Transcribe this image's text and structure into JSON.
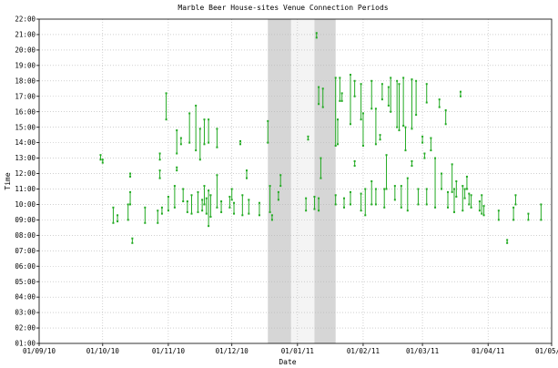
{
  "chart_data": {
    "type": "scatter",
    "title": "Marble Beer House-sites Venue Connection Periods",
    "xlabel": "Date",
    "ylabel": "Time",
    "xlim": [
      "2010-09-01",
      "2011-05-01"
    ],
    "ylim": [
      1,
      22
    ],
    "x_ticks": [
      "01/09/10",
      "01/10/10",
      "01/11/10",
      "01/12/10",
      "01/01/11",
      "01/02/11",
      "01/03/11",
      "01/04/11",
      "01/05/11"
    ],
    "y_ticks": [
      "01:00",
      "02:00",
      "03:00",
      "04:00",
      "05:00",
      "06:00",
      "07:00",
      "08:00",
      "09:00",
      "10:00",
      "11:00",
      "12:00",
      "13:00",
      "14:00",
      "15:00",
      "16:00",
      "17:00",
      "18:00",
      "19:00",
      "20:00",
      "21:00",
      "22:00"
    ],
    "grid": true,
    "legend": "none",
    "colors": {
      "series": "#22aa22",
      "shade_dark": "#d6d6d6",
      "shade_light": "#f4f4f4",
      "grid": "#b4b4b4"
    },
    "shaded_periods": [
      {
        "start": "2010-12-18",
        "end": "2010-12-29",
        "tone": "dark"
      },
      {
        "start": "2010-12-29",
        "end": "2011-01-09",
        "tone": "light"
      },
      {
        "start": "2011-01-09",
        "end": "2011-01-19",
        "tone": "dark"
      }
    ],
    "series": [
      {
        "color": "#22aa22",
        "intervals": [
          [
            "2010-09-30",
            12.9,
            13.2
          ],
          [
            "2010-10-01",
            12.7,
            12.9
          ],
          [
            "2010-10-06",
            8.8,
            9.8
          ],
          [
            "2010-10-08",
            8.9,
            9.3
          ],
          [
            "2010-10-13",
            9.0,
            10.0
          ],
          [
            "2010-10-14",
            10.0,
            10.8
          ],
          [
            "2010-10-14",
            11.8,
            12.0
          ],
          [
            "2010-10-15",
            7.5,
            7.8
          ],
          [
            "2010-10-21",
            8.8,
            9.8
          ],
          [
            "2010-10-27",
            8.8,
            9.6
          ],
          [
            "2010-10-28",
            11.7,
            12.2
          ],
          [
            "2010-10-28",
            12.9,
            13.3
          ],
          [
            "2010-10-29",
            9.4,
            9.8
          ],
          [
            "2010-10-31",
            15.5,
            17.2
          ],
          [
            "2010-11-01",
            9.6,
            10.5
          ],
          [
            "2010-11-04",
            9.8,
            11.2
          ],
          [
            "2010-11-05",
            13.3,
            14.8
          ],
          [
            "2010-11-05",
            12.2,
            12.4
          ],
          [
            "2010-11-07",
            13.9,
            14.3
          ],
          [
            "2010-11-08",
            10.2,
            11.0
          ],
          [
            "2010-11-10",
            9.5,
            10.2
          ],
          [
            "2010-11-11",
            14.0,
            15.9
          ],
          [
            "2010-11-12",
            9.4,
            10.6
          ],
          [
            "2010-11-14",
            13.5,
            16.4
          ],
          [
            "2010-11-15",
            9.5,
            10.8
          ],
          [
            "2010-11-16",
            12.9,
            14.9
          ],
          [
            "2010-11-17",
            9.6,
            10.3
          ],
          [
            "2010-11-18",
            10.0,
            11.2
          ],
          [
            "2010-11-18",
            13.9,
            15.5
          ],
          [
            "2010-11-19",
            9.4,
            10.4
          ],
          [
            "2010-11-20",
            8.6,
            10.9
          ],
          [
            "2010-11-20",
            14.0,
            15.5
          ],
          [
            "2010-11-21",
            9.2,
            10.6
          ],
          [
            "2010-11-24",
            9.8,
            11.9
          ],
          [
            "2010-11-24",
            13.7,
            14.9
          ],
          [
            "2010-11-26",
            9.5,
            10.2
          ],
          [
            "2010-11-30",
            9.8,
            10.5
          ],
          [
            "2010-12-01",
            10.3,
            11.0
          ],
          [
            "2010-12-02",
            9.4,
            10.1
          ],
          [
            "2010-12-05",
            13.9,
            14.1
          ],
          [
            "2010-12-06",
            9.3,
            10.6
          ],
          [
            "2010-12-08",
            11.7,
            12.2
          ],
          [
            "2010-12-09",
            9.4,
            10.3
          ],
          [
            "2010-12-14",
            9.3,
            10.1
          ],
          [
            "2010-12-18",
            14.0,
            15.4
          ],
          [
            "2010-12-19",
            9.5,
            11.2
          ],
          [
            "2010-12-20",
            9.0,
            9.3
          ],
          [
            "2010-12-23",
            10.3,
            10.8
          ],
          [
            "2010-12-24",
            11.2,
            11.9
          ],
          [
            "2011-01-05",
            9.6,
            10.4
          ],
          [
            "2011-01-06",
            14.2,
            14.4
          ],
          [
            "2011-01-09",
            9.7,
            10.5
          ],
          [
            "2011-01-10",
            20.8,
            21.1
          ],
          [
            "2011-01-11",
            16.5,
            17.6
          ],
          [
            "2011-01-11",
            9.6,
            10.4
          ],
          [
            "2011-01-12",
            11.7,
            13.0
          ],
          [
            "2011-01-13",
            16.3,
            17.5
          ],
          [
            "2011-01-19",
            13.8,
            18.2
          ],
          [
            "2011-01-19",
            10.0,
            10.6
          ],
          [
            "2011-01-20",
            13.9,
            15.5
          ],
          [
            "2011-01-21",
            16.7,
            18.2
          ],
          [
            "2011-01-22",
            16.7,
            17.2
          ],
          [
            "2011-01-23",
            9.8,
            10.4
          ],
          [
            "2011-01-26",
            15.2,
            18.4
          ],
          [
            "2011-01-26",
            10.0,
            10.8
          ],
          [
            "2011-01-28",
            17.0,
            18.0
          ],
          [
            "2011-01-28",
            12.5,
            12.8
          ],
          [
            "2011-01-31",
            15.5,
            17.8
          ],
          [
            "2011-01-31",
            9.6,
            10.7
          ],
          [
            "2011-02-01",
            13.8,
            15.9
          ],
          [
            "2011-02-02",
            9.3,
            11.0
          ],
          [
            "2011-02-05",
            16.2,
            18.0
          ],
          [
            "2011-02-05",
            10.0,
            11.5
          ],
          [
            "2011-02-07",
            13.9,
            16.2
          ],
          [
            "2011-02-07",
            10.0,
            11.0
          ],
          [
            "2011-02-09",
            14.2,
            14.5
          ],
          [
            "2011-02-10",
            16.8,
            17.8
          ],
          [
            "2011-02-11",
            9.8,
            11.0
          ],
          [
            "2011-02-12",
            11.0,
            13.2
          ],
          [
            "2011-02-13",
            16.4,
            17.6
          ],
          [
            "2011-02-14",
            16.0,
            18.2
          ],
          [
            "2011-02-16",
            10.3,
            11.2
          ],
          [
            "2011-02-17",
            15.0,
            18.0
          ],
          [
            "2011-02-18",
            14.8,
            17.8
          ],
          [
            "2011-02-19",
            9.8,
            11.2
          ],
          [
            "2011-02-20",
            15.1,
            18.2
          ],
          [
            "2011-02-21",
            13.5,
            15.0
          ],
          [
            "2011-02-22",
            9.6,
            11.7
          ],
          [
            "2011-02-24",
            14.9,
            18.1
          ],
          [
            "2011-02-24",
            12.5,
            12.8
          ],
          [
            "2011-02-26",
            15.8,
            18.0
          ],
          [
            "2011-02-27",
            10.0,
            11.0
          ],
          [
            "2011-03-01",
            14.0,
            14.4
          ],
          [
            "2011-03-02",
            13.0,
            13.3
          ],
          [
            "2011-03-03",
            16.6,
            17.8
          ],
          [
            "2011-03-03",
            10.0,
            11.0
          ],
          [
            "2011-03-05",
            13.5,
            14.3
          ],
          [
            "2011-03-07",
            9.8,
            13.0
          ],
          [
            "2011-03-09",
            16.3,
            16.8
          ],
          [
            "2011-03-10",
            11.0,
            12.0
          ],
          [
            "2011-03-12",
            15.2,
            16.1
          ],
          [
            "2011-03-13",
            9.8,
            10.8
          ],
          [
            "2011-03-15",
            10.8,
            12.6
          ],
          [
            "2011-03-16",
            9.5,
            11.0
          ],
          [
            "2011-03-17",
            10.5,
            11.5
          ],
          [
            "2011-03-19",
            17.0,
            17.3
          ],
          [
            "2011-03-20",
            9.6,
            11.2
          ],
          [
            "2011-03-21",
            10.4,
            11.0
          ],
          [
            "2011-03-22",
            11.0,
            11.8
          ],
          [
            "2011-03-23",
            10.0,
            10.7
          ],
          [
            "2011-03-24",
            9.8,
            10.6
          ],
          [
            "2011-03-28",
            9.6,
            10.2
          ],
          [
            "2011-03-29",
            9.4,
            10.6
          ],
          [
            "2011-03-30",
            9.3,
            9.9
          ],
          [
            "2011-04-06",
            9.0,
            9.6
          ],
          [
            "2011-04-10",
            7.5,
            7.7
          ],
          [
            "2011-04-13",
            9.0,
            9.8
          ],
          [
            "2011-04-14",
            10.0,
            10.6
          ],
          [
            "2011-04-20",
            9.0,
            9.4
          ],
          [
            "2011-04-26",
            9.0,
            10.0
          ]
        ]
      }
    ]
  }
}
